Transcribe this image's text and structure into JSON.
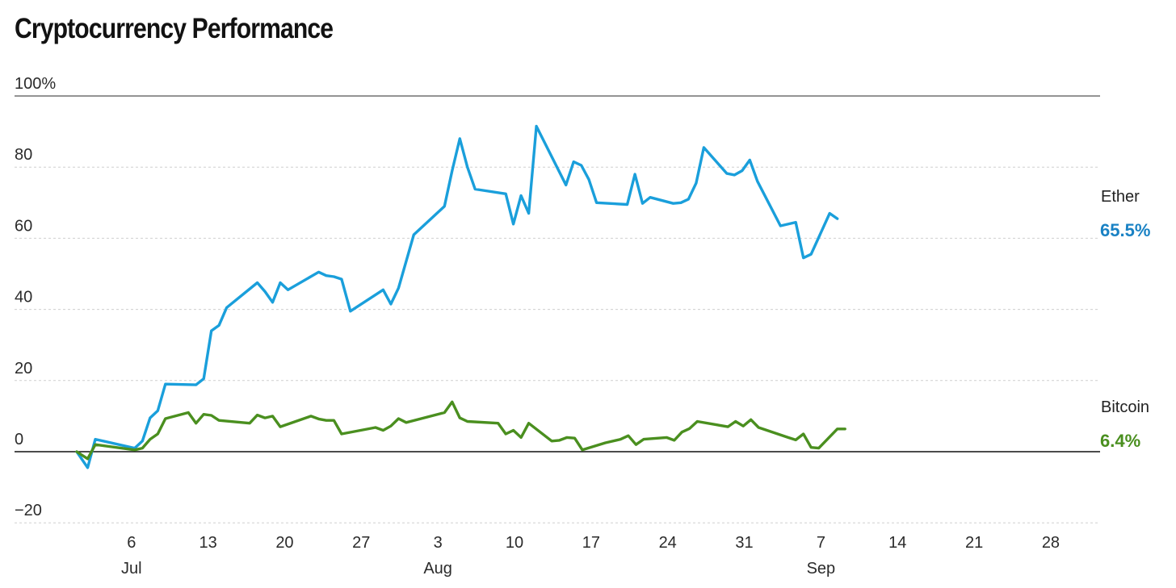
{
  "chart_data": {
    "type": "line",
    "title": "Cryptocurrency Performance",
    "ylabel": "",
    "xlabel": "",
    "ylim": [
      -20,
      100
    ],
    "ytick_labels": [
      {
        "value": 100,
        "label": "100%"
      },
      {
        "value": 80,
        "label": "80"
      },
      {
        "value": 60,
        "label": "60"
      },
      {
        "value": 40,
        "label": "40"
      },
      {
        "value": 20,
        "label": "20"
      },
      {
        "value": 0,
        "label": "0"
      },
      {
        "value": -20,
        "label": "−20"
      }
    ],
    "xlim": [
      -3,
      89
    ],
    "xtick_labels": [
      {
        "day": 5,
        "label": "6"
      },
      {
        "day": 12,
        "label": "13"
      },
      {
        "day": 19,
        "label": "20"
      },
      {
        "day": 26,
        "label": "27"
      },
      {
        "day": 33,
        "label": "3"
      },
      {
        "day": 40,
        "label": "10"
      },
      {
        "day": 47,
        "label": "17"
      },
      {
        "day": 54,
        "label": "24"
      },
      {
        "day": 61,
        "label": "31"
      },
      {
        "day": 68,
        "label": "7"
      },
      {
        "day": 75,
        "label": "14"
      },
      {
        "day": 82,
        "label": "21"
      },
      {
        "day": 89,
        "label": "28"
      }
    ],
    "month_labels": [
      {
        "day": 5,
        "label": "Jul"
      },
      {
        "day": 33,
        "label": "Aug"
      },
      {
        "day": 68,
        "label": "Sep"
      }
    ],
    "series": [
      {
        "name": "Ether",
        "end_label": "65.5%",
        "color": "#1a9fdb",
        "label_color": "#1a82c4",
        "points": [
          [
            0,
            0
          ],
          [
            1,
            -4.5
          ],
          [
            1.7,
            3.5
          ],
          [
            5.3,
            1
          ],
          [
            6,
            3
          ],
          [
            6.7,
            9.5
          ],
          [
            7.4,
            11.5
          ],
          [
            8.1,
            19
          ],
          [
            10.9,
            18.8
          ],
          [
            11.6,
            20.5
          ],
          [
            12.3,
            34
          ],
          [
            13,
            35.5
          ],
          [
            13.7,
            40.5
          ],
          [
            16.5,
            47.5
          ],
          [
            17.2,
            45
          ],
          [
            17.9,
            42
          ],
          [
            18.6,
            47.5
          ],
          [
            19.3,
            45.5
          ],
          [
            22.1,
            50.5
          ],
          [
            22.8,
            49.5
          ],
          [
            23.5,
            49.2
          ],
          [
            24.2,
            48.5
          ],
          [
            25,
            39.5
          ],
          [
            28,
            45.5
          ],
          [
            28.7,
            41.5
          ],
          [
            29.4,
            46
          ],
          [
            30.8,
            61
          ],
          [
            33.6,
            69
          ],
          [
            34.3,
            79
          ],
          [
            35,
            88
          ],
          [
            35.7,
            80
          ],
          [
            36.4,
            73.8
          ],
          [
            39.2,
            72.5
          ],
          [
            39.9,
            64
          ],
          [
            40.6,
            72
          ],
          [
            41.3,
            67
          ],
          [
            42,
            91.5
          ],
          [
            44.7,
            75
          ],
          [
            45.4,
            81.5
          ],
          [
            46.1,
            80.5
          ],
          [
            46.8,
            76.5
          ],
          [
            47.5,
            70
          ],
          [
            50.3,
            69.5
          ],
          [
            51,
            78
          ],
          [
            51.7,
            69.8
          ],
          [
            52.4,
            71.5
          ],
          [
            54.5,
            69.8
          ],
          [
            55.2,
            70
          ],
          [
            55.9,
            71
          ],
          [
            56.6,
            75.5
          ],
          [
            57.3,
            85.5
          ],
          [
            59.4,
            78.2
          ],
          [
            60.1,
            77.8
          ],
          [
            60.8,
            79
          ],
          [
            61.5,
            82
          ],
          [
            62.2,
            76
          ],
          [
            64.3,
            63.5
          ],
          [
            65.7,
            64.5
          ],
          [
            66.4,
            54.5
          ],
          [
            67.1,
            55.5
          ],
          [
            68.8,
            67
          ],
          [
            69.5,
            65.5
          ]
        ]
      },
      {
        "name": "Bitcoin",
        "end_label": "6.4%",
        "color": "#4a8f1f",
        "label_color": "#4a8f1f",
        "points": [
          [
            0,
            0
          ],
          [
            1,
            -2
          ],
          [
            1.7,
            2
          ],
          [
            5.3,
            0.5
          ],
          [
            6,
            1
          ],
          [
            6.7,
            3.5
          ],
          [
            7.4,
            5
          ],
          [
            8.1,
            9.3
          ],
          [
            10.2,
            11
          ],
          [
            10.9,
            8
          ],
          [
            11.6,
            10.5
          ],
          [
            12.3,
            10.2
          ],
          [
            13,
            8.8
          ],
          [
            15.8,
            8
          ],
          [
            16.5,
            10.3
          ],
          [
            17.2,
            9.5
          ],
          [
            17.9,
            10
          ],
          [
            18.6,
            7
          ],
          [
            21.4,
            10
          ],
          [
            22.1,
            9.2
          ],
          [
            22.8,
            8.8
          ],
          [
            23.5,
            8.8
          ],
          [
            24.2,
            5
          ],
          [
            27.3,
            6.8
          ],
          [
            28,
            6
          ],
          [
            28.7,
            7.2
          ],
          [
            29.4,
            9.3
          ],
          [
            30.1,
            8.2
          ],
          [
            33.6,
            11
          ],
          [
            34.3,
            14
          ],
          [
            35,
            9.5
          ],
          [
            35.7,
            8.5
          ],
          [
            38.5,
            8
          ],
          [
            39.2,
            5
          ],
          [
            39.9,
            6
          ],
          [
            40.6,
            4
          ],
          [
            41.3,
            8
          ],
          [
            43.4,
            3
          ],
          [
            44.1,
            3.2
          ],
          [
            44.8,
            4
          ],
          [
            45.5,
            3.8
          ],
          [
            46.2,
            0.5
          ],
          [
            48.3,
            2.5
          ],
          [
            49.7,
            3.5
          ],
          [
            50.4,
            4.5
          ],
          [
            51.1,
            2
          ],
          [
            51.8,
            3.5
          ],
          [
            53.9,
            4
          ],
          [
            54.6,
            3.2
          ],
          [
            55.3,
            5.5
          ],
          [
            56,
            6.5
          ],
          [
            56.7,
            8.5
          ],
          [
            59.5,
            7
          ],
          [
            60.2,
            8.5
          ],
          [
            60.9,
            7.2
          ],
          [
            61.6,
            9
          ],
          [
            62.3,
            6.8
          ],
          [
            65,
            4
          ],
          [
            65.7,
            3.3
          ],
          [
            66.4,
            5
          ],
          [
            67.1,
            1.2
          ],
          [
            67.8,
            1
          ],
          [
            69.5,
            6.4
          ],
          [
            70.2,
            6.4
          ]
        ]
      }
    ]
  }
}
